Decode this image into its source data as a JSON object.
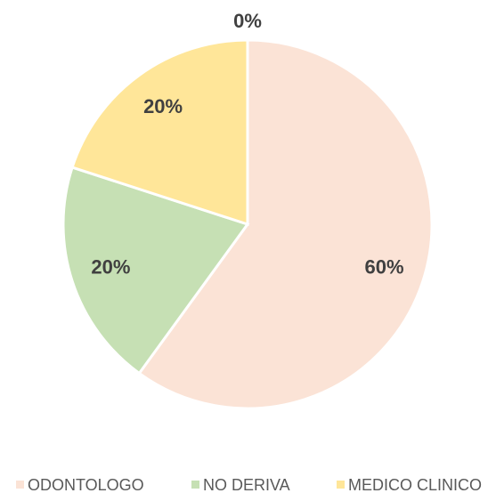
{
  "chart_data": {
    "type": "pie",
    "categories": [
      "ODONTOLOGO",
      "NO DERIVA",
      "MEDICO CLINICO",
      null
    ],
    "values": [
      60,
      20,
      20,
      0
    ],
    "value_labels": [
      "60%",
      "20%",
      "20%",
      "0%"
    ],
    "colors": [
      "#fbe3d6",
      "#c6e0b4",
      "#ffe699",
      "#bdd7ee"
    ],
    "legend": "bottom"
  }
}
